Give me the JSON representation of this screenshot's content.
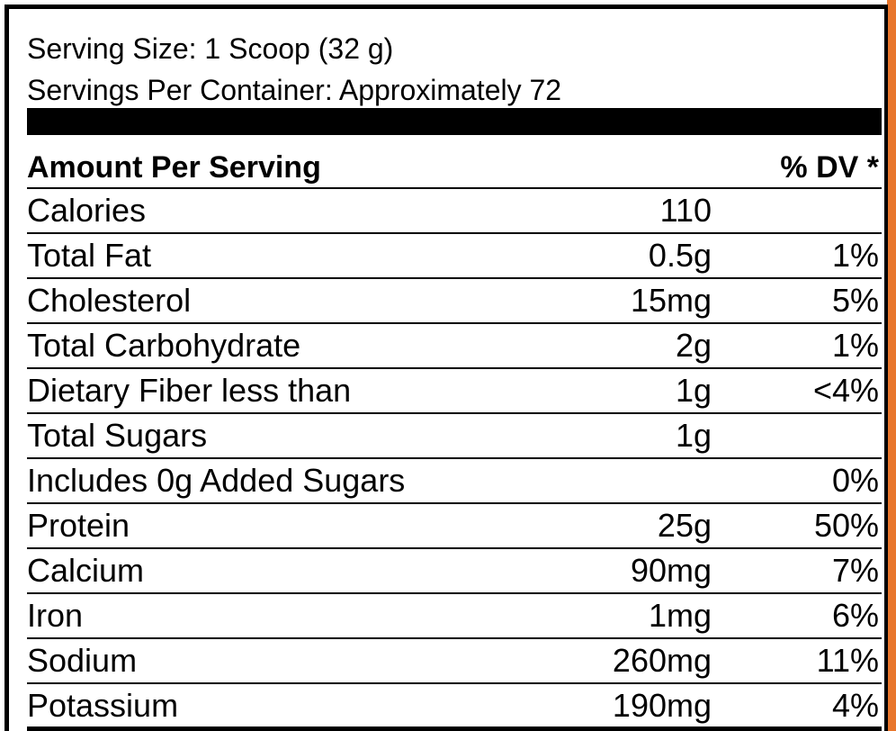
{
  "serving": {
    "size": "Serving Size: 1 Scoop (32 g)",
    "per_container": "Servings Per Container: Approximately 72"
  },
  "header": {
    "amount": "Amount Per Serving",
    "dv": "% DV *"
  },
  "colors": {
    "accent": "#e8762c",
    "text": "#000000",
    "background": "#ffffff"
  },
  "rows": [
    {
      "name": "Calories",
      "amount": "110",
      "dv": ""
    },
    {
      "name": "Total Fat",
      "amount": "0.5g",
      "dv": "1%"
    },
    {
      "name": "Cholesterol",
      "amount": "15mg",
      "dv": "5%"
    },
    {
      "name": "Total Carbohydrate",
      "amount": "2g",
      "dv": "1%"
    },
    {
      "name": "Dietary Fiber less than",
      "amount": "1g",
      "dv": "<4%"
    },
    {
      "name": "Total Sugars",
      "amount": "1g",
      "dv": ""
    },
    {
      "name": "Includes 0g Added Sugars",
      "amount": "",
      "dv": "0%"
    },
    {
      "name": "Protein",
      "amount": "25g",
      "dv": "50%"
    },
    {
      "name": "Calcium",
      "amount": "90mg",
      "dv": "7%"
    },
    {
      "name": "Iron",
      "amount": "1mg",
      "dv": "6%"
    },
    {
      "name": "Sodium",
      "amount": "260mg",
      "dv": "11%"
    },
    {
      "name": "Potassium",
      "amount": "190mg",
      "dv": "4%"
    }
  ]
}
